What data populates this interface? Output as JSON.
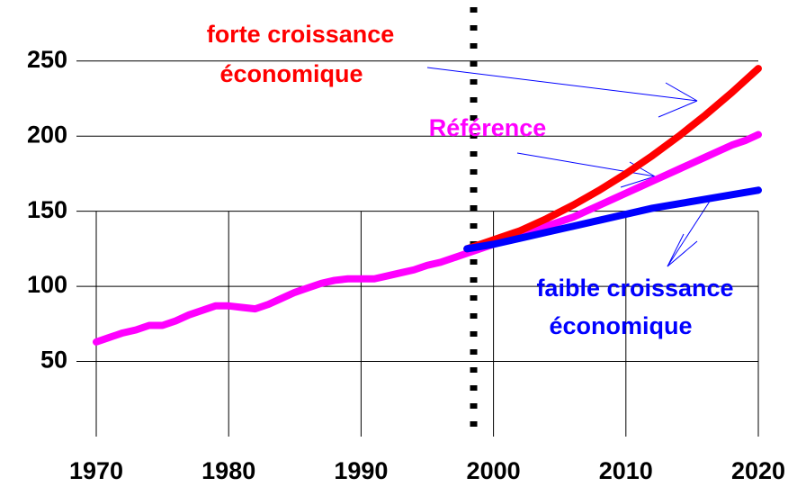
{
  "chart_data": {
    "type": "line",
    "xlim": [
      1970,
      2020
    ],
    "xticks": [
      1970,
      1980,
      1990,
      2000,
      2010,
      2020
    ],
    "ylim": [
      0,
      290
    ],
    "yticks": [
      50,
      100,
      150,
      200,
      250
    ],
    "grid": true,
    "vline": 1998.5,
    "series": [
      {
        "name": "Référence",
        "color": "#ff00ff",
        "x": [
          1970,
          1971,
          1972,
          1973,
          1974,
          1975,
          1976,
          1977,
          1978,
          1979,
          1980,
          1981,
          1982,
          1983,
          1984,
          1985,
          1986,
          1987,
          1988,
          1989,
          1990,
          1991,
          1992,
          1993,
          1994,
          1995,
          1996,
          1997,
          1998,
          1999,
          2000,
          2001,
          2002,
          2003,
          2004,
          2005,
          2006,
          2007,
          2008,
          2009,
          2010,
          2011,
          2012,
          2013,
          2014,
          2015,
          2016,
          2017,
          2018,
          2019,
          2020
        ],
        "values": [
          63,
          66,
          69,
          71,
          74,
          74,
          77,
          81,
          84,
          87,
          87,
          86,
          85,
          88,
          92,
          96,
          99,
          102,
          104,
          105,
          105,
          105,
          107,
          109,
          111,
          114,
          116,
          119,
          122,
          125,
          128,
          131,
          134,
          137,
          140,
          143,
          146,
          150,
          154,
          158,
          162,
          166,
          170,
          174,
          178,
          182,
          186,
          190,
          194,
          197,
          201
        ]
      },
      {
        "name": "forte croissance économique",
        "color": "#ff0000",
        "x": [
          1998,
          2000,
          2002,
          2004,
          2006,
          2008,
          2010,
          2012,
          2014,
          2016,
          2018,
          2020
        ],
        "values": [
          125,
          131,
          137,
          145,
          154,
          164,
          175,
          187,
          200,
          214,
          229,
          245
        ]
      },
      {
        "name": "faible croissance économique",
        "color": "#0000ff",
        "x": [
          1998,
          2000,
          2002,
          2004,
          2006,
          2008,
          2010,
          2012,
          2014,
          2016,
          2018,
          2020
        ],
        "values": [
          125,
          128,
          132,
          136,
          140,
          144,
          148,
          152,
          155,
          158,
          161,
          164
        ]
      }
    ],
    "annotations": [
      {
        "text": "forte croissance",
        "color": "#ff0000"
      },
      {
        "text": "économique",
        "color": "#ff0000"
      },
      {
        "text": "Référence",
        "color": "#ff00ff"
      },
      {
        "text": "faible croissance",
        "color": "#0000ff"
      },
      {
        "text": "économique",
        "color": "#0000ff"
      }
    ]
  }
}
